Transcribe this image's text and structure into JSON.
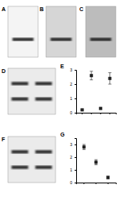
{
  "blots": [
    {
      "label": "A",
      "lanes": 1,
      "bands": 1
    },
    {
      "label": "B",
      "lanes": 1,
      "bands": 1
    },
    {
      "label": "C",
      "lanes": 1,
      "bands": 1
    },
    {
      "label": "D",
      "lanes": 2,
      "bands": 2
    },
    {
      "label": "F",
      "lanes": 2,
      "bands": 2
    }
  ],
  "chart_data": [
    {
      "type": "scatter",
      "title": "E",
      "categories": [
        null,
        null,
        null,
        null
      ],
      "values": [
        0.2,
        2.6,
        0.3,
        2.4
      ],
      "errors": [
        0.05,
        0.3,
        0.05,
        0.4
      ],
      "color": "#222222",
      "marker": "square",
      "ylim": [
        0,
        3
      ],
      "yticks": [
        0,
        1,
        2,
        3
      ],
      "tick_labels": "y"
    },
    {
      "type": "scatter",
      "title": "G",
      "categories": [
        null,
        null,
        null
      ],
      "values": [
        2.8,
        1.6,
        0.4
      ],
      "errors": [
        0.2,
        0.2,
        0.1
      ],
      "color": "#222222",
      "marker": "square",
      "ylim": [
        0,
        3.5
      ],
      "yticks": [
        0,
        1,
        2,
        3
      ],
      "tick_labels": "y"
    }
  ]
}
